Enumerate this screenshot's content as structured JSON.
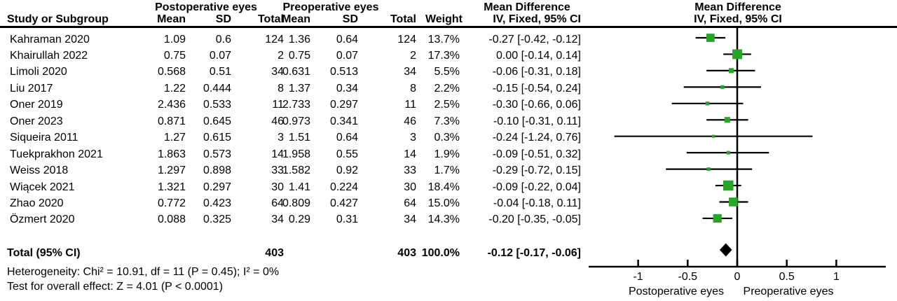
{
  "figure": {
    "background": "#ffffff",
    "text_color": "#000000"
  },
  "header": {
    "study_col": "Study or Subgroup",
    "group_postop": "Postoperative eyes",
    "group_preop": "Preoperative eyes",
    "group_md_text": "Mean Difference",
    "group_md_plot": "Mean Difference",
    "post_mean": "Mean",
    "post_sd": "SD",
    "post_total": "Total",
    "pre_mean": "Mean",
    "pre_sd": "SD",
    "pre_total": "Total",
    "weight_col": "Weight",
    "iv_text": "IV, Fixed, 95% CI",
    "iv_plot": "IV, Fixed, 95% CI"
  },
  "table": {
    "rows": [
      {
        "study": "Kahraman 2020",
        "post_mean": "1.09",
        "post_sd": "0.6",
        "post_total": "124",
        "pre_mean": "1.36",
        "pre_sd": "0.64",
        "pre_total": "124",
        "weight": "13.7%",
        "md_ci": "-0.27 [-0.42, -0.12]"
      },
      {
        "study": "Khairullah 2022",
        "post_mean": "0.75",
        "post_sd": "0.07",
        "post_total": "2",
        "pre_mean": "0.75",
        "pre_sd": "0.07",
        "pre_total": "2",
        "weight": "17.3%",
        "md_ci": "0.00 [-0.14, 0.14]"
      },
      {
        "study": "Limoli 2020",
        "post_mean": "0.568",
        "post_sd": "0.51",
        "post_total": "34",
        "pre_mean": "0.631",
        "pre_sd": "0.513",
        "pre_total": "34",
        "weight": "5.5%",
        "md_ci": "-0.06 [-0.31, 0.18]"
      },
      {
        "study": "Liu 2017",
        "post_mean": "1.22",
        "post_sd": "0.444",
        "post_total": "8",
        "pre_mean": "1.37",
        "pre_sd": "0.34",
        "pre_total": "8",
        "weight": "2.2%",
        "md_ci": "-0.15 [-0.54, 0.24]"
      },
      {
        "study": "Oner 2019",
        "post_mean": "2.436",
        "post_sd": "0.533",
        "post_total": "11",
        "pre_mean": "2.733",
        "pre_sd": "0.297",
        "pre_total": "11",
        "weight": "2.5%",
        "md_ci": "-0.30 [-0.66, 0.06]"
      },
      {
        "study": "Oner 2023",
        "post_mean": "0.871",
        "post_sd": "0.645",
        "post_total": "46",
        "pre_mean": "0.973",
        "pre_sd": "0.341",
        "pre_total": "46",
        "weight": "7.3%",
        "md_ci": "-0.10 [-0.31, 0.11]"
      },
      {
        "study": "Siqueira 2011",
        "post_mean": "1.27",
        "post_sd": "0.615",
        "post_total": "3",
        "pre_mean": "1.51",
        "pre_sd": "0.64",
        "pre_total": "3",
        "weight": "0.3%",
        "md_ci": "-0.24 [-1.24, 0.76]"
      },
      {
        "study": "Tuekprakhon 2021",
        "post_mean": "1.863",
        "post_sd": "0.573",
        "post_total": "14",
        "pre_mean": "1.958",
        "pre_sd": "0.55",
        "pre_total": "14",
        "weight": "1.9%",
        "md_ci": "-0.09 [-0.51, 0.32]"
      },
      {
        "study": "Weiss 2018",
        "post_mean": "1.297",
        "post_sd": "0.898",
        "post_total": "33",
        "pre_mean": "1.582",
        "pre_sd": "0.92",
        "pre_total": "33",
        "weight": "1.7%",
        "md_ci": "-0.29 [-0.72, 0.15]"
      },
      {
        "study": "Wiącek 2021",
        "post_mean": "1.321",
        "post_sd": "0.297",
        "post_total": "30",
        "pre_mean": "1.41",
        "pre_sd": "0.224",
        "pre_total": "30",
        "weight": "18.4%",
        "md_ci": "-0.09 [-0.22, 0.04]"
      },
      {
        "study": "Zhao 2020",
        "post_mean": "0.772",
        "post_sd": "0.423",
        "post_total": "64",
        "pre_mean": "0.809",
        "pre_sd": "0.427",
        "pre_total": "64",
        "weight": "15.0%",
        "md_ci": "-0.04 [-0.18, 0.11]"
      },
      {
        "study": "Özmert 2020",
        "post_mean": "0.088",
        "post_sd": "0.325",
        "post_total": "34",
        "pre_mean": "0.29",
        "pre_sd": "0.31",
        "pre_total": "34",
        "weight": "14.3%",
        "md_ci": "-0.20 [-0.35, -0.05]"
      }
    ],
    "total": {
      "label": "Total (95% CI)",
      "post_total": "403",
      "pre_total": "403",
      "weight": "100.0%",
      "md_ci": "-0.12 [-0.17, -0.06]"
    },
    "heterogeneity": "Heterogeneity: Chi² = 10.91, df = 11 (P = 0.45); I² = 0%",
    "overall_effect": "Test for overall effect: Z = 4.01 (P < 0.0001)"
  },
  "chart_data": {
    "type": "forest",
    "effect_measure": "Mean Difference",
    "method": "IV, Fixed, 95% CI",
    "studies": [
      {
        "name": "Kahraman 2020",
        "md": -0.27,
        "lo": -0.42,
        "hi": -0.12,
        "weight_pct": 13.7
      },
      {
        "name": "Khairullah 2022",
        "md": 0.0,
        "lo": -0.14,
        "hi": 0.14,
        "weight_pct": 17.3
      },
      {
        "name": "Limoli 2020",
        "md": -0.06,
        "lo": -0.31,
        "hi": 0.18,
        "weight_pct": 5.5
      },
      {
        "name": "Liu 2017",
        "md": -0.15,
        "lo": -0.54,
        "hi": 0.24,
        "weight_pct": 2.2
      },
      {
        "name": "Oner 2019",
        "md": -0.3,
        "lo": -0.66,
        "hi": 0.06,
        "weight_pct": 2.5
      },
      {
        "name": "Oner 2023",
        "md": -0.1,
        "lo": -0.31,
        "hi": 0.11,
        "weight_pct": 7.3
      },
      {
        "name": "Siqueira 2011",
        "md": -0.24,
        "lo": -1.24,
        "hi": 0.76,
        "weight_pct": 0.3
      },
      {
        "name": "Tuekprakhon 2021",
        "md": -0.09,
        "lo": -0.51,
        "hi": 0.32,
        "weight_pct": 1.9
      },
      {
        "name": "Weiss 2018",
        "md": -0.29,
        "lo": -0.72,
        "hi": 0.15,
        "weight_pct": 1.7
      },
      {
        "name": "Wiącek 2021",
        "md": -0.09,
        "lo": -0.22,
        "hi": 0.04,
        "weight_pct": 18.4
      },
      {
        "name": "Zhao 2020",
        "md": -0.04,
        "lo": -0.18,
        "hi": 0.11,
        "weight_pct": 15.0
      },
      {
        "name": "Özmert 2020",
        "md": -0.2,
        "lo": -0.35,
        "hi": -0.05,
        "weight_pct": 14.3
      }
    ],
    "overall": {
      "md": -0.12,
      "lo": -0.17,
      "hi": -0.06,
      "weight_pct": 100.0
    },
    "heterogeneity": {
      "chi2": 10.91,
      "df": 11,
      "p": 0.45,
      "i2_pct": 0
    },
    "overall_effect_test": {
      "z": 4.01,
      "p": "< 0.0001"
    },
    "axis": {
      "xlim": [
        -1.5,
        1.5
      ],
      "ticks": [
        -1,
        -0.5,
        0,
        0.5,
        1
      ],
      "tick_labels": [
        "-1",
        "-0.5",
        "0",
        "0.5",
        "1"
      ],
      "left_label": "Postoperative eyes",
      "right_label": "Preoperative eyes"
    },
    "marker_color": "#28A428",
    "line_color": "#000000"
  }
}
